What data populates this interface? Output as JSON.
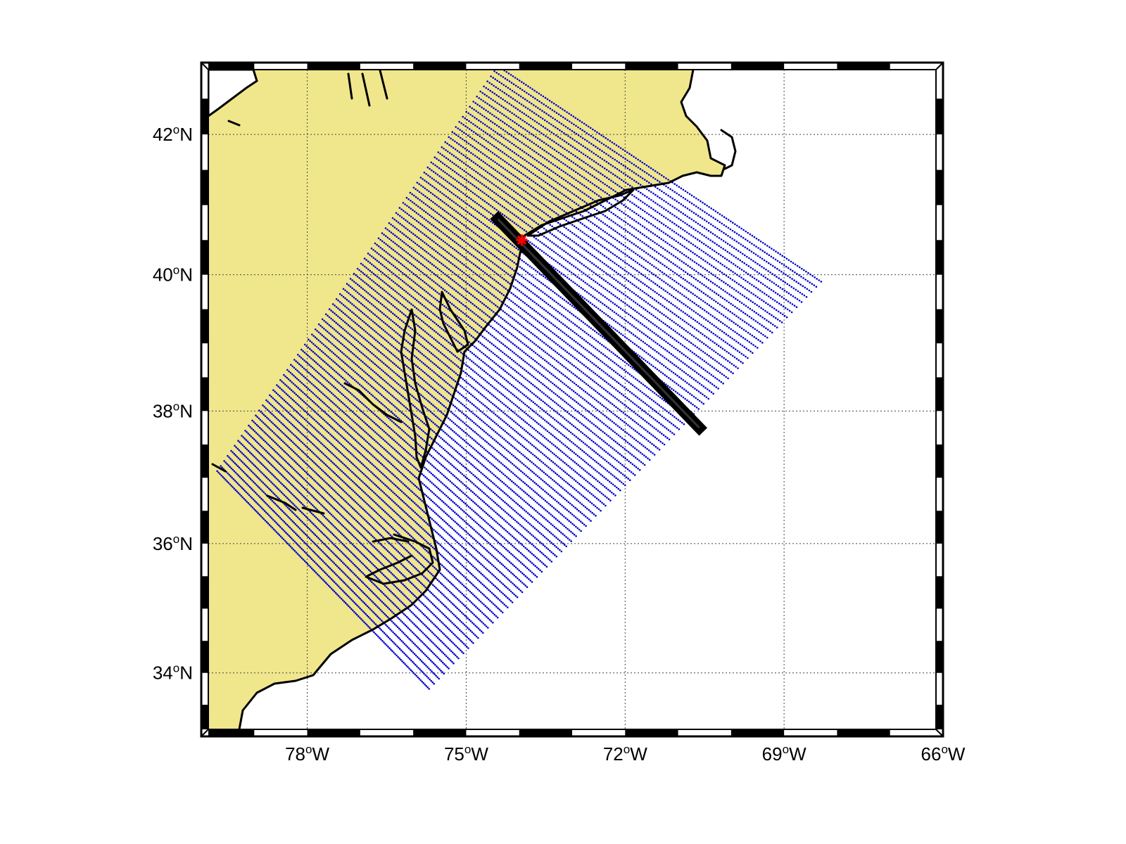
{
  "map": {
    "projection": "mercator",
    "lon_range": [
      -80,
      -66
    ],
    "lat_range": [
      33,
      43
    ],
    "land_color": "#f0e68c",
    "ocean_color": "#ffffff",
    "grid": true,
    "frame_style": "fancy black-white ticks"
  },
  "axes": {
    "lon_ticks": [
      {
        "value": -78,
        "deg": "78",
        "hem": "W"
      },
      {
        "value": -75,
        "deg": "75",
        "hem": "W"
      },
      {
        "value": -72,
        "deg": "72",
        "hem": "W"
      },
      {
        "value": -69,
        "deg": "69",
        "hem": "W"
      },
      {
        "value": -66,
        "deg": "66",
        "hem": "W"
      }
    ],
    "lat_ticks": [
      {
        "value": 34,
        "deg": "34",
        "hem": "N"
      },
      {
        "value": 36,
        "deg": "36",
        "hem": "N"
      },
      {
        "value": 38,
        "deg": "38",
        "hem": "N"
      },
      {
        "value": 40,
        "deg": "40",
        "hem": "N"
      },
      {
        "value": 42,
        "deg": "42",
        "hem": "N"
      }
    ],
    "degree_symbol": "o"
  },
  "grid_domain": {
    "color": "#0000cc",
    "marker": "dot",
    "corners_lonlat": [
      [
        -79.7,
        37.1
      ],
      [
        -74.4,
        42.95
      ],
      [
        -68.3,
        39.9
      ],
      [
        -75.7,
        33.75
      ]
    ],
    "rows": 80,
    "cols": 150
  },
  "transect": {
    "color": "#000000",
    "start_lonlat": [
      -74.4,
      40.8
    ],
    "end_lonlat": [
      -70.6,
      37.75
    ]
  },
  "station": {
    "color": "#ff0000",
    "marker": "asterisk",
    "lonlat": [
      -73.95,
      40.5
    ]
  }
}
